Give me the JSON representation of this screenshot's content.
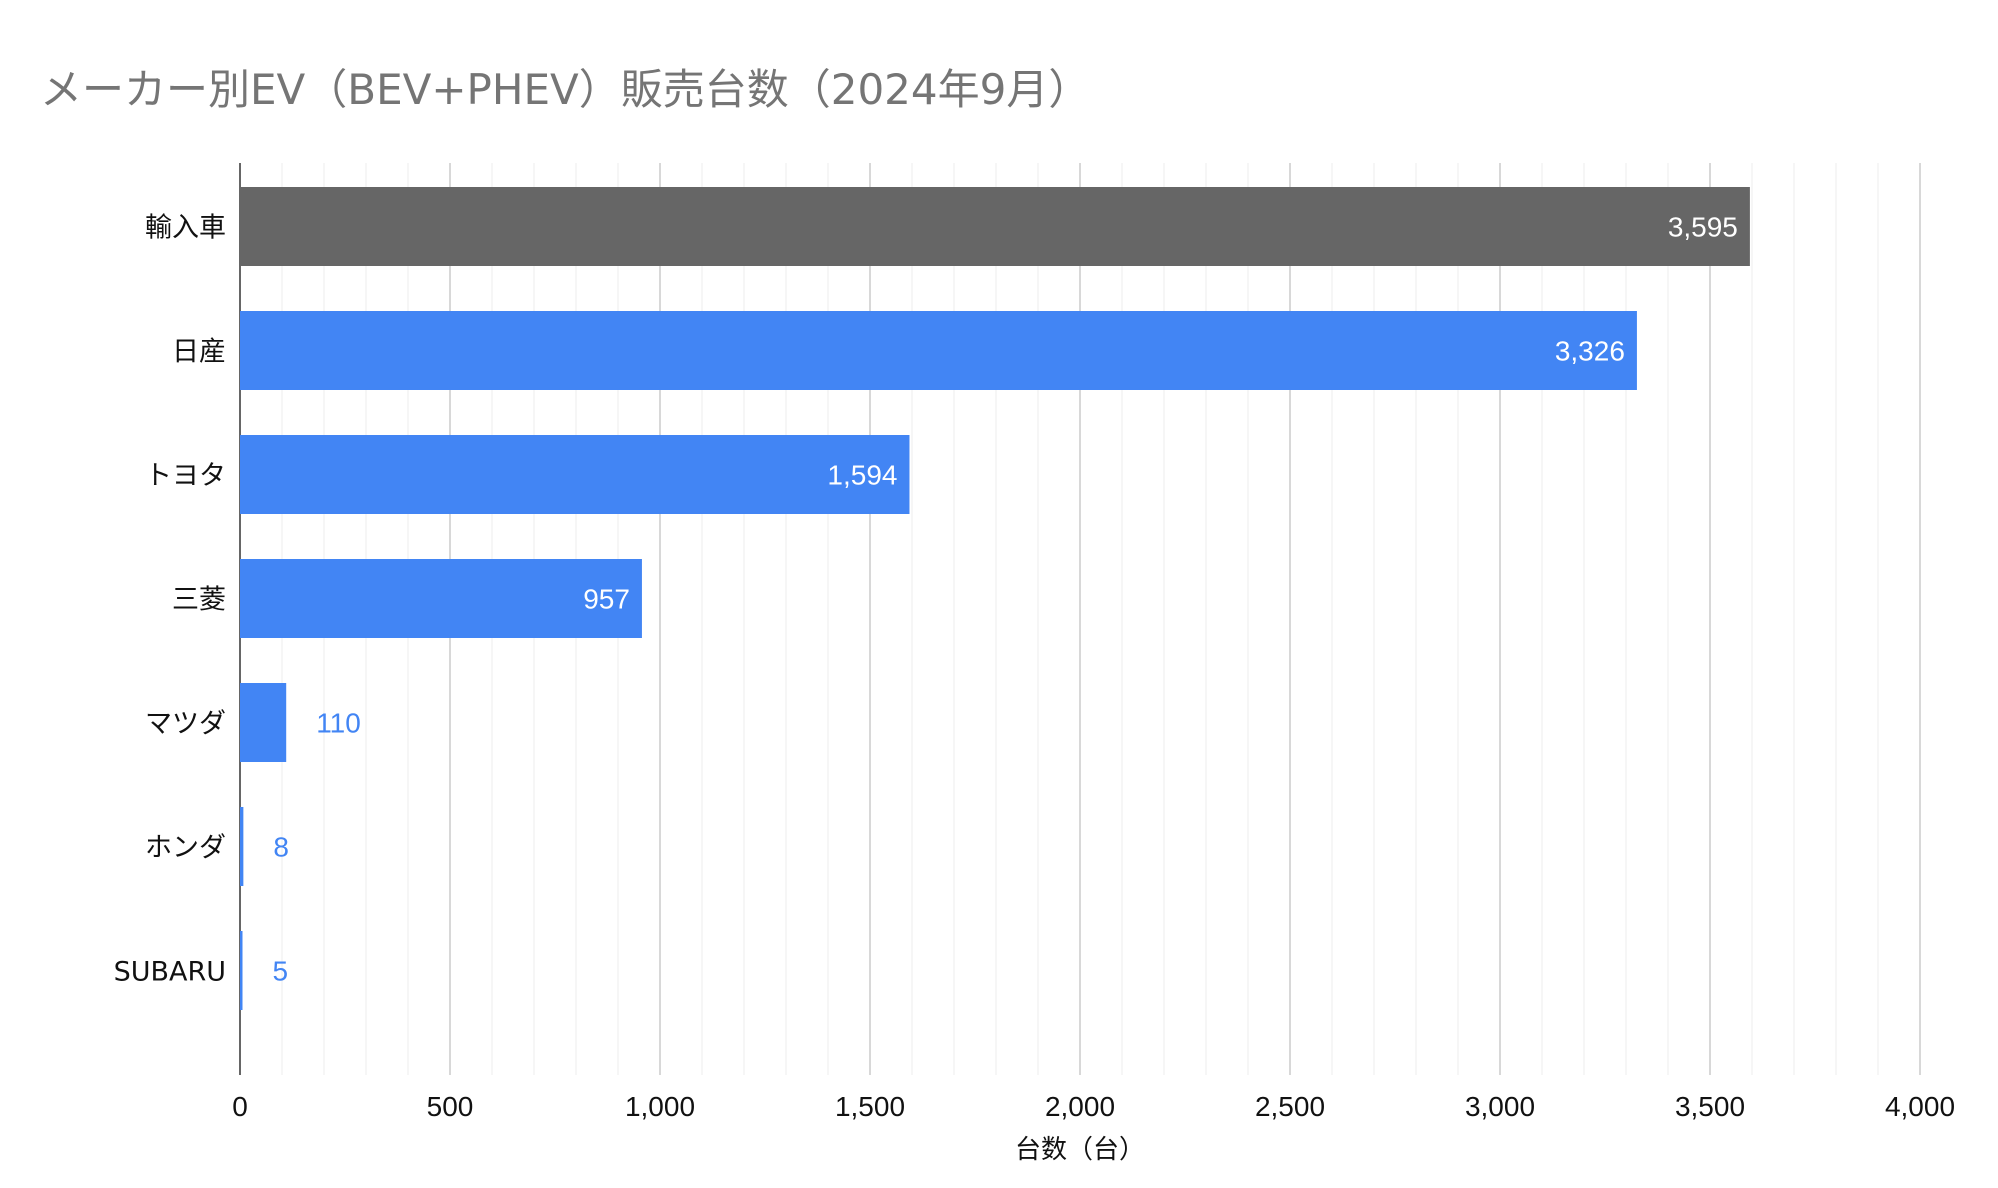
{
  "chart_data": {
    "type": "bar",
    "orientation": "horizontal",
    "title": "メーカー別EV（BEV+PHEV）販売台数（2024年9月）",
    "xlabel": "台数（台）",
    "ylabel": "",
    "xlim": [
      0,
      4000
    ],
    "xticks": [
      0,
      500,
      1000,
      1500,
      2000,
      2500,
      3000,
      3500,
      4000
    ],
    "xtick_labels": [
      "0",
      "500",
      "1,000",
      "1,500",
      "2,000",
      "2,500",
      "3,000",
      "3,500",
      "4,000"
    ],
    "grid": true,
    "legend": "none",
    "categories": [
      "輸入車",
      "日産",
      "トヨタ",
      "三菱",
      "マツダ",
      "ホンダ",
      "SUBARU"
    ],
    "values": [
      3595,
      3326,
      1594,
      957,
      110,
      8,
      5
    ],
    "value_labels": [
      "3,595",
      "3,326",
      "1,594",
      "957",
      "110",
      "8",
      "5"
    ],
    "bar_colors": [
      "#666666",
      "#4285f4",
      "#4285f4",
      "#4285f4",
      "#4285f4",
      "#4285f4",
      "#4285f4"
    ]
  }
}
